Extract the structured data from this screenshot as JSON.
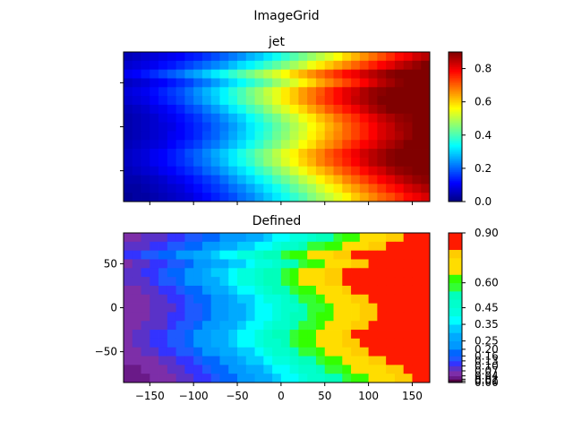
{
  "suptitle": "ImageGrid",
  "chart_data": [
    {
      "type": "heatmap",
      "title": "jet",
      "colormap": "jet",
      "xlim": [
        -180,
        170
      ],
      "ylim": [
        -85,
        85
      ],
      "x_ticks": [
        -150,
        -100,
        -50,
        0,
        50,
        100,
        150
      ],
      "y_ticks": [
        -50,
        0,
        50
      ],
      "tick_labels_visible": false,
      "colorbar": {
        "range": [
          0,
          0.9
        ],
        "ticks": [
          0.0,
          0.2,
          0.4,
          0.6,
          0.8
        ],
        "labels": [
          "0.0",
          "0.2",
          "0.4",
          "0.6",
          "0.8"
        ]
      },
      "columns": 35,
      "rows": 17,
      "values_by_row": [
        [
          0.05,
          0.06,
          0.07,
          0.08,
          0.09,
          0.1,
          0.11,
          0.13,
          0.14,
          0.16,
          0.18,
          0.2,
          0.22,
          0.24,
          0.27,
          0.29,
          0.32,
          0.35,
          0.38,
          0.41,
          0.44,
          0.47,
          0.5,
          0.53,
          0.56,
          0.6,
          0.63,
          0.66,
          0.69,
          0.72,
          0.75,
          0.78,
          0.8,
          0.83,
          0.85
        ],
        [
          0.07,
          0.08,
          0.09,
          0.1,
          0.12,
          0.13,
          0.15,
          0.17,
          0.19,
          0.21,
          0.23,
          0.25,
          0.28,
          0.31,
          0.33,
          0.36,
          0.39,
          0.42,
          0.45,
          0.48,
          0.51,
          0.55,
          0.58,
          0.61,
          0.64,
          0.67,
          0.7,
          0.73,
          0.76,
          0.79,
          0.81,
          0.84,
          0.86,
          0.88,
          0.9
        ],
        [
          0.1,
          0.11,
          0.13,
          0.15,
          0.17,
          0.19,
          0.21,
          0.24,
          0.26,
          0.29,
          0.32,
          0.35,
          0.38,
          0.41,
          0.44,
          0.47,
          0.5,
          0.53,
          0.56,
          0.6,
          0.63,
          0.66,
          0.69,
          0.72,
          0.75,
          0.78,
          0.8,
          0.83,
          0.85,
          0.87,
          0.89,
          0.9,
          0.9,
          0.9,
          0.9
        ],
        [
          0.06,
          0.07,
          0.08,
          0.1,
          0.11,
          0.13,
          0.15,
          0.17,
          0.2,
          0.22,
          0.25,
          0.28,
          0.31,
          0.34,
          0.37,
          0.4,
          0.43,
          0.47,
          0.5,
          0.53,
          0.57,
          0.6,
          0.64,
          0.67,
          0.7,
          0.73,
          0.76,
          0.79,
          0.82,
          0.85,
          0.87,
          0.89,
          0.9,
          0.9,
          0.9
        ],
        [
          0.08,
          0.09,
          0.1,
          0.12,
          0.14,
          0.16,
          0.18,
          0.21,
          0.24,
          0.27,
          0.3,
          0.33,
          0.37,
          0.4,
          0.44,
          0.47,
          0.51,
          0.54,
          0.58,
          0.61,
          0.65,
          0.68,
          0.71,
          0.75,
          0.78,
          0.81,
          0.83,
          0.86,
          0.88,
          0.89,
          0.9,
          0.9,
          0.9,
          0.9,
          0.9
        ],
        [
          0.07,
          0.08,
          0.09,
          0.11,
          0.13,
          0.15,
          0.17,
          0.2,
          0.23,
          0.26,
          0.29,
          0.33,
          0.36,
          0.4,
          0.43,
          0.47,
          0.5,
          0.54,
          0.58,
          0.61,
          0.65,
          0.68,
          0.72,
          0.75,
          0.78,
          0.81,
          0.84,
          0.86,
          0.88,
          0.9,
          0.9,
          0.9,
          0.9,
          0.9,
          0.9
        ],
        [
          0.05,
          0.06,
          0.07,
          0.09,
          0.1,
          0.12,
          0.14,
          0.17,
          0.19,
          0.22,
          0.25,
          0.28,
          0.32,
          0.35,
          0.39,
          0.42,
          0.46,
          0.5,
          0.53,
          0.57,
          0.6,
          0.64,
          0.67,
          0.71,
          0.74,
          0.77,
          0.8,
          0.83,
          0.86,
          0.88,
          0.9,
          0.9,
          0.9,
          0.9,
          0.9
        ],
        [
          0.04,
          0.05,
          0.06,
          0.07,
          0.09,
          0.1,
          0.12,
          0.14,
          0.16,
          0.19,
          0.21,
          0.24,
          0.27,
          0.3,
          0.34,
          0.37,
          0.41,
          0.44,
          0.48,
          0.51,
          0.55,
          0.58,
          0.62,
          0.65,
          0.69,
          0.72,
          0.75,
          0.78,
          0.81,
          0.84,
          0.86,
          0.88,
          0.89,
          0.9,
          0.9
        ],
        [
          0.04,
          0.05,
          0.06,
          0.07,
          0.08,
          0.09,
          0.11,
          0.13,
          0.15,
          0.17,
          0.2,
          0.22,
          0.25,
          0.28,
          0.32,
          0.35,
          0.38,
          0.42,
          0.45,
          0.49,
          0.52,
          0.56,
          0.59,
          0.63,
          0.66,
          0.7,
          0.73,
          0.76,
          0.79,
          0.82,
          0.84,
          0.87,
          0.88,
          0.9,
          0.9
        ],
        [
          0.04,
          0.05,
          0.06,
          0.07,
          0.08,
          0.1,
          0.11,
          0.13,
          0.15,
          0.18,
          0.2,
          0.23,
          0.26,
          0.29,
          0.32,
          0.36,
          0.39,
          0.43,
          0.46,
          0.5,
          0.53,
          0.57,
          0.6,
          0.64,
          0.67,
          0.7,
          0.73,
          0.76,
          0.79,
          0.82,
          0.84,
          0.86,
          0.88,
          0.9,
          0.9
        ],
        [
          0.05,
          0.06,
          0.07,
          0.08,
          0.09,
          0.11,
          0.13,
          0.15,
          0.17,
          0.2,
          0.22,
          0.25,
          0.28,
          0.31,
          0.35,
          0.38,
          0.42,
          0.45,
          0.49,
          0.52,
          0.56,
          0.59,
          0.63,
          0.66,
          0.69,
          0.73,
          0.76,
          0.79,
          0.81,
          0.84,
          0.86,
          0.88,
          0.9,
          0.9,
          0.9
        ],
        [
          0.06,
          0.07,
          0.08,
          0.1,
          0.11,
          0.13,
          0.15,
          0.18,
          0.2,
          0.23,
          0.26,
          0.29,
          0.32,
          0.36,
          0.39,
          0.43,
          0.46,
          0.5,
          0.54,
          0.57,
          0.61,
          0.64,
          0.67,
          0.71,
          0.74,
          0.77,
          0.8,
          0.83,
          0.85,
          0.87,
          0.89,
          0.9,
          0.9,
          0.9,
          0.9
        ],
        [
          0.06,
          0.07,
          0.08,
          0.1,
          0.11,
          0.13,
          0.15,
          0.17,
          0.2,
          0.22,
          0.25,
          0.28,
          0.32,
          0.35,
          0.38,
          0.42,
          0.46,
          0.49,
          0.53,
          0.56,
          0.6,
          0.63,
          0.67,
          0.7,
          0.73,
          0.76,
          0.79,
          0.82,
          0.85,
          0.87,
          0.89,
          0.9,
          0.9,
          0.9,
          0.9
        ],
        [
          0.05,
          0.06,
          0.07,
          0.08,
          0.1,
          0.11,
          0.13,
          0.15,
          0.17,
          0.2,
          0.22,
          0.25,
          0.28,
          0.31,
          0.34,
          0.38,
          0.41,
          0.45,
          0.48,
          0.52,
          0.55,
          0.59,
          0.62,
          0.65,
          0.69,
          0.72,
          0.75,
          0.78,
          0.81,
          0.83,
          0.86,
          0.88,
          0.89,
          0.9,
          0.9
        ],
        [
          0.04,
          0.04,
          0.05,
          0.06,
          0.07,
          0.09,
          0.1,
          0.12,
          0.14,
          0.16,
          0.18,
          0.21,
          0.24,
          0.27,
          0.3,
          0.33,
          0.36,
          0.4,
          0.43,
          0.46,
          0.5,
          0.53,
          0.57,
          0.6,
          0.63,
          0.67,
          0.7,
          0.73,
          0.76,
          0.79,
          0.81,
          0.84,
          0.86,
          0.88,
          0.89
        ],
        [
          0.03,
          0.03,
          0.04,
          0.05,
          0.06,
          0.07,
          0.08,
          0.1,
          0.12,
          0.14,
          0.16,
          0.18,
          0.21,
          0.23,
          0.26,
          0.29,
          0.32,
          0.35,
          0.38,
          0.42,
          0.45,
          0.48,
          0.52,
          0.55,
          0.58,
          0.62,
          0.65,
          0.68,
          0.71,
          0.74,
          0.77,
          0.79,
          0.82,
          0.84,
          0.86
        ],
        [
          0.02,
          0.03,
          0.03,
          0.04,
          0.05,
          0.06,
          0.07,
          0.08,
          0.1,
          0.12,
          0.14,
          0.16,
          0.18,
          0.21,
          0.23,
          0.26,
          0.29,
          0.32,
          0.35,
          0.38,
          0.41,
          0.45,
          0.48,
          0.51,
          0.54,
          0.57,
          0.61,
          0.64,
          0.67,
          0.7,
          0.72,
          0.75,
          0.78,
          0.8,
          0.82
        ]
      ]
    },
    {
      "type": "heatmap",
      "title": "Defined",
      "colormap": "discrete (BoundaryNorm)",
      "xlim": [
        -180,
        170
      ],
      "ylim": [
        -85,
        85
      ],
      "x_ticks": [
        -150,
        -100,
        -50,
        0,
        50,
        100,
        150
      ],
      "x_tick_labels": [
        "−150",
        "−100",
        "−50",
        "0",
        "50",
        "100",
        "150"
      ],
      "y_ticks": [
        -50,
        0,
        50
      ],
      "y_tick_labels": [
        "−50",
        "0",
        "50"
      ],
      "colorbar": {
        "boundaries": [
          0.0,
          0.01,
          0.02,
          0.04,
          0.07,
          0.1,
          0.13,
          0.16,
          0.2,
          0.25,
          0.3,
          0.35,
          0.4,
          0.45,
          0.5,
          0.55,
          0.6,
          0.65,
          0.7,
          0.75,
          0.8,
          0.85,
          0.9
        ],
        "labels": [
          "0.00",
          "0.01",
          "0.02",
          "0.04",
          "0.07",
          "0.10",
          "0.13",
          "0.16",
          "0.20",
          "0.25",
          "0.35",
          "0.45",
          "0.60",
          "0.90"
        ],
        "label_values": [
          0.0,
          0.01,
          0.02,
          0.04,
          0.07,
          0.1,
          0.13,
          0.16,
          0.2,
          0.25,
          0.35,
          0.45,
          0.6,
          0.9
        ],
        "colors": [
          "#330033",
          "#550044",
          "#6a1a88",
          "#7d2ea8",
          "#5a32c8",
          "#3333ff",
          "#1e5aff",
          "#0066ff",
          "#0099ff",
          "#00aaff",
          "#00ccff",
          "#00ffff",
          "#00ffdd",
          "#00ffcc",
          "#00ffbb",
          "#33ff33",
          "#33ff00",
          "#ffdd00",
          "#ffdd00",
          "#ffcc00",
          "#ff1a00",
          "#ff1a00"
        ]
      }
    }
  ]
}
